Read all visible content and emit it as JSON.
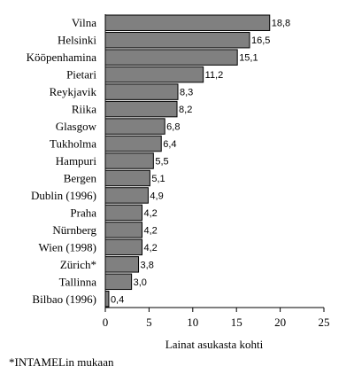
{
  "chart_data": {
    "type": "bar",
    "orientation": "horizontal",
    "categories": [
      "Vilna",
      "Helsinki",
      "Kööpenhamina",
      "Pietari",
      "Reykjavik",
      "Riika",
      "Glasgow",
      "Tukholma",
      "Hampuri",
      "Bergen",
      "Dublin (1996)",
      "Praha",
      "Nürnberg",
      "Wien (1998)",
      "Zürich*",
      "Tallinna",
      "Bilbao (1996)"
    ],
    "values": [
      18.8,
      16.5,
      15.1,
      11.2,
      8.3,
      8.2,
      6.8,
      6.4,
      5.5,
      5.1,
      4.9,
      4.2,
      4.2,
      4.2,
      3.8,
      3.0,
      0.4
    ],
    "value_labels": [
      "18,8",
      "16,5",
      "15,1",
      "11,2",
      "8,3",
      "8,2",
      "6,8",
      "6,4",
      "5,5",
      "5,1",
      "4,9",
      "4,2",
      "4,2",
      "4,2",
      "3,8",
      "3,0",
      "0,4"
    ],
    "xlabel": "Lainat asukasta kohti",
    "ylabel": "",
    "xlim": [
      0,
      25
    ],
    "xticks": [
      0,
      5,
      10,
      15,
      20,
      25
    ],
    "bar_color": "#808080",
    "grid": false
  },
  "footnote": "*INTAMELin mukaan"
}
